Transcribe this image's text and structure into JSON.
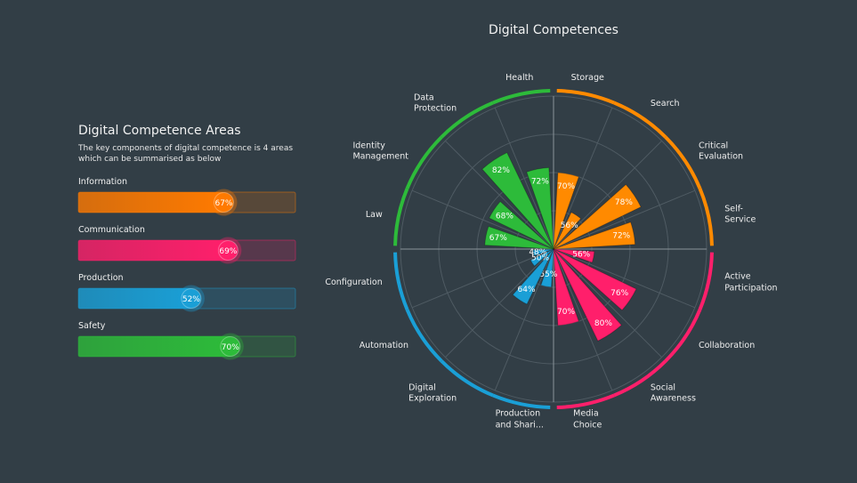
{
  "chart_data": [
    {
      "type": "progress",
      "title": "Digital Competence Areas",
      "subtitle": "The key components of digital competence is 4 areas\nwhich can be summarised as below",
      "categories": [
        "Information",
        "Communication",
        "Production",
        "Safety"
      ],
      "values": [
        67,
        69,
        52,
        70
      ],
      "value_labels": [
        "67%",
        "69%",
        "52%",
        "70%"
      ],
      "colors": [
        "#ff7a00",
        "#ff1f6b",
        "#1a9fd6",
        "#2dbb3a"
      ],
      "xlim": [
        0,
        100
      ]
    },
    {
      "type": "polar-bar",
      "title": "Digital Competences",
      "categories": [
        "Storage",
        "Search",
        "Critical\nEvaluation",
        "Self-\nService",
        "Active\nParticipation",
        "Collaboration",
        "Social\nAwareness",
        "Media\nChoice",
        "Production\nand Shari...",
        "Digital\nExploration",
        "Automation",
        "Configuration",
        "Law",
        "Identity\nManagement",
        "Data\nProtection",
        "Health"
      ],
      "values": [
        70,
        56,
        78,
        72,
        56,
        76,
        80,
        70,
        55,
        64,
        50,
        48,
        67,
        68,
        82,
        72
      ],
      "value_labels": [
        "70%",
        "56%",
        "78%",
        "72%",
        "56%",
        "76%",
        "80%",
        "70%",
        "55%",
        "64%",
        "50%",
        "48%",
        "67%",
        "68%",
        "82%",
        "72%"
      ],
      "colors": [
        "#ff8a00",
        "#ff8a00",
        "#ff8a00",
        "#ff8a00",
        "#ff1f6b",
        "#ff1f6b",
        "#ff1f6b",
        "#ff1f6b",
        "#1a9fd6",
        "#1a9fd6",
        "#1a9fd6",
        "#1a9fd6",
        "#2dbb3a",
        "#2dbb3a",
        "#2dbb3a",
        "#2dbb3a"
      ],
      "rlim": [
        40,
        100
      ]
    }
  ]
}
